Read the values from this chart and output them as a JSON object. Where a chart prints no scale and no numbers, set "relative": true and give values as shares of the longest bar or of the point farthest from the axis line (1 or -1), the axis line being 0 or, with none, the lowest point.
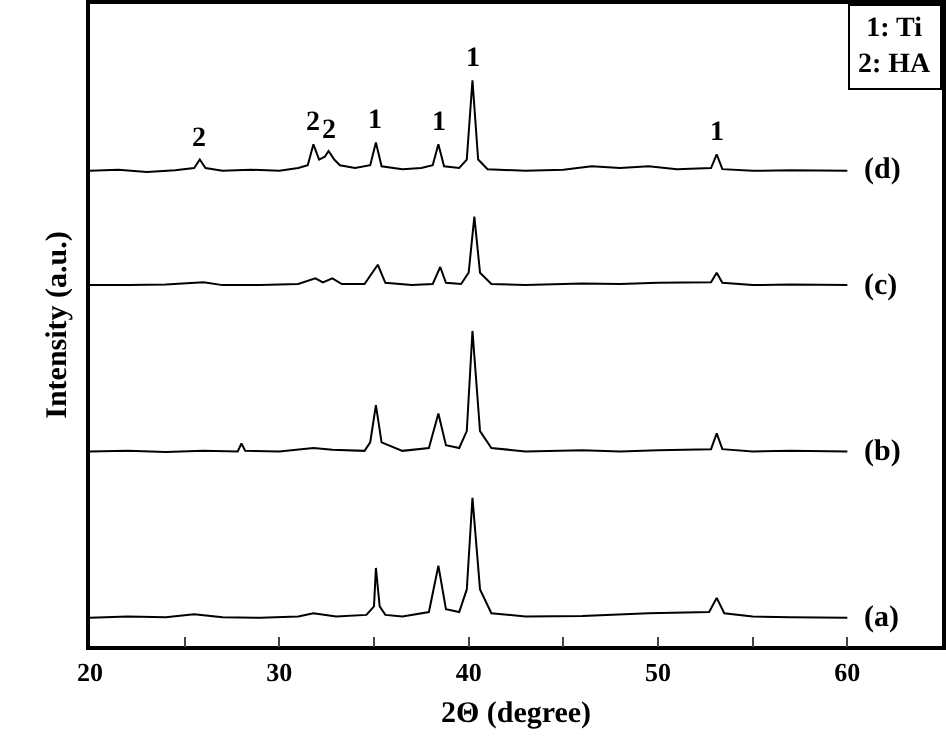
{
  "chart_data": {
    "type": "line",
    "relative": true,
    "xlabel": "2Θ (degree)",
    "ylabel": "Intensity (a.u.)",
    "xlim": [
      20,
      65
    ],
    "xticks": [
      20,
      {
        "value": 25,
        "label": null
      },
      30,
      {
        "value": 35,
        "label": null
      },
      40,
      {
        "value": 45,
        "label": null
      },
      50,
      {
        "value": 55,
        "label": null
      },
      60
    ],
    "grid": false,
    "legend": false,
    "marker": "none",
    "line_style": "solid",
    "series": [
      {
        "name": "(d)",
        "color": "#000000",
        "x": [
          20,
          21.5,
          23,
          24.5,
          25.5,
          25.8,
          26.1,
          27,
          28.5,
          30,
          31,
          31.5,
          31.8,
          32.1,
          32.4,
          32.6,
          32.9,
          33.2,
          34,
          34.8,
          35.1,
          35.4,
          36.5,
          37.5,
          38.1,
          38.4,
          38.7,
          39.5,
          39.9,
          40.2,
          40.5,
          41,
          43,
          45,
          46.5,
          48,
          49.5,
          51,
          52.8,
          53.1,
          53.4,
          55,
          57,
          60
        ],
        "values": [
          0.84,
          0.842,
          0.838,
          0.841,
          0.845,
          0.86,
          0.845,
          0.84,
          0.842,
          0.84,
          0.845,
          0.85,
          0.887,
          0.86,
          0.865,
          0.875,
          0.86,
          0.85,
          0.845,
          0.85,
          0.89,
          0.848,
          0.843,
          0.845,
          0.85,
          0.887,
          0.848,
          0.845,
          0.86,
          1.0,
          0.86,
          0.843,
          0.84,
          0.842,
          0.848,
          0.845,
          0.848,
          0.843,
          0.845,
          0.869,
          0.843,
          0.84,
          0.841,
          0.84
        ]
      },
      {
        "name": "(c)",
        "color": "#000000",
        "x": [
          20,
          22,
          24,
          26,
          27,
          29,
          31,
          31.9,
          32.3,
          32.8,
          33.3,
          34.5,
          35.2,
          35.6,
          37,
          38.1,
          38.5,
          38.8,
          39.6,
          40,
          40.3,
          40.6,
          41.2,
          43,
          46,
          48,
          50,
          52.8,
          53.1,
          53.4,
          55,
          57,
          60
        ],
        "values": [
          0.638,
          0.638,
          0.639,
          0.643,
          0.638,
          0.638,
          0.64,
          0.65,
          0.643,
          0.65,
          0.64,
          0.64,
          0.674,
          0.642,
          0.638,
          0.64,
          0.67,
          0.642,
          0.64,
          0.66,
          0.759,
          0.66,
          0.64,
          0.638,
          0.641,
          0.64,
          0.642,
          0.643,
          0.66,
          0.642,
          0.638,
          0.639,
          0.638
        ]
      },
      {
        "name": "(b)",
        "color": "#000000",
        "x": [
          20,
          22,
          24,
          26,
          27.8,
          28,
          28.2,
          30,
          31.8,
          32.8,
          34.5,
          34.8,
          35.1,
          35.4,
          36.5,
          37.9,
          38.4,
          38.8,
          39.5,
          39.9,
          40.2,
          40.6,
          41.2,
          43,
          46,
          48,
          50,
          52.8,
          53.1,
          53.4,
          55,
          57,
          60
        ],
        "values": [
          0.344,
          0.345,
          0.343,
          0.345,
          0.344,
          0.358,
          0.345,
          0.344,
          0.35,
          0.347,
          0.345,
          0.36,
          0.426,
          0.36,
          0.345,
          0.35,
          0.411,
          0.355,
          0.35,
          0.38,
          0.557,
          0.38,
          0.35,
          0.344,
          0.346,
          0.344,
          0.346,
          0.348,
          0.376,
          0.348,
          0.344,
          0.345,
          0.344
        ]
      },
      {
        "name": "(a)",
        "color": "#000000",
        "x": [
          20,
          22,
          24,
          25.5,
          27,
          29,
          31,
          31.8,
          33,
          34.6,
          35,
          35.1,
          35.3,
          35.6,
          36.5,
          37.9,
          38.4,
          38.8,
          39.5,
          39.9,
          40.2,
          40.6,
          41.2,
          43,
          46,
          49.5,
          52.7,
          53.1,
          53.5,
          55,
          57,
          60
        ],
        "values": [
          0.05,
          0.052,
          0.051,
          0.056,
          0.051,
          0.05,
          0.052,
          0.058,
          0.052,
          0.055,
          0.07,
          0.138,
          0.07,
          0.055,
          0.052,
          0.06,
          0.142,
          0.065,
          0.06,
          0.1,
          0.262,
          0.1,
          0.058,
          0.052,
          0.053,
          0.058,
          0.06,
          0.085,
          0.058,
          0.052,
          0.051,
          0.05
        ]
      }
    ],
    "annotations": [
      {
        "text": "2",
        "x": 25.8,
        "y": 0.86
      },
      {
        "text": "2",
        "x": 31.8,
        "y": 0.887
      },
      {
        "text": "2",
        "x": 32.6,
        "y": 0.875
      },
      {
        "text": "1",
        "x": 35.1,
        "y": 0.89
      },
      {
        "text": "1",
        "x": 38.4,
        "y": 0.887
      },
      {
        "text": "1",
        "x": 40.2,
        "y": 1.0
      },
      {
        "text": "1",
        "x": 53.1,
        "y": 0.869
      },
      "1: Ti\n2: HA"
    ]
  }
}
